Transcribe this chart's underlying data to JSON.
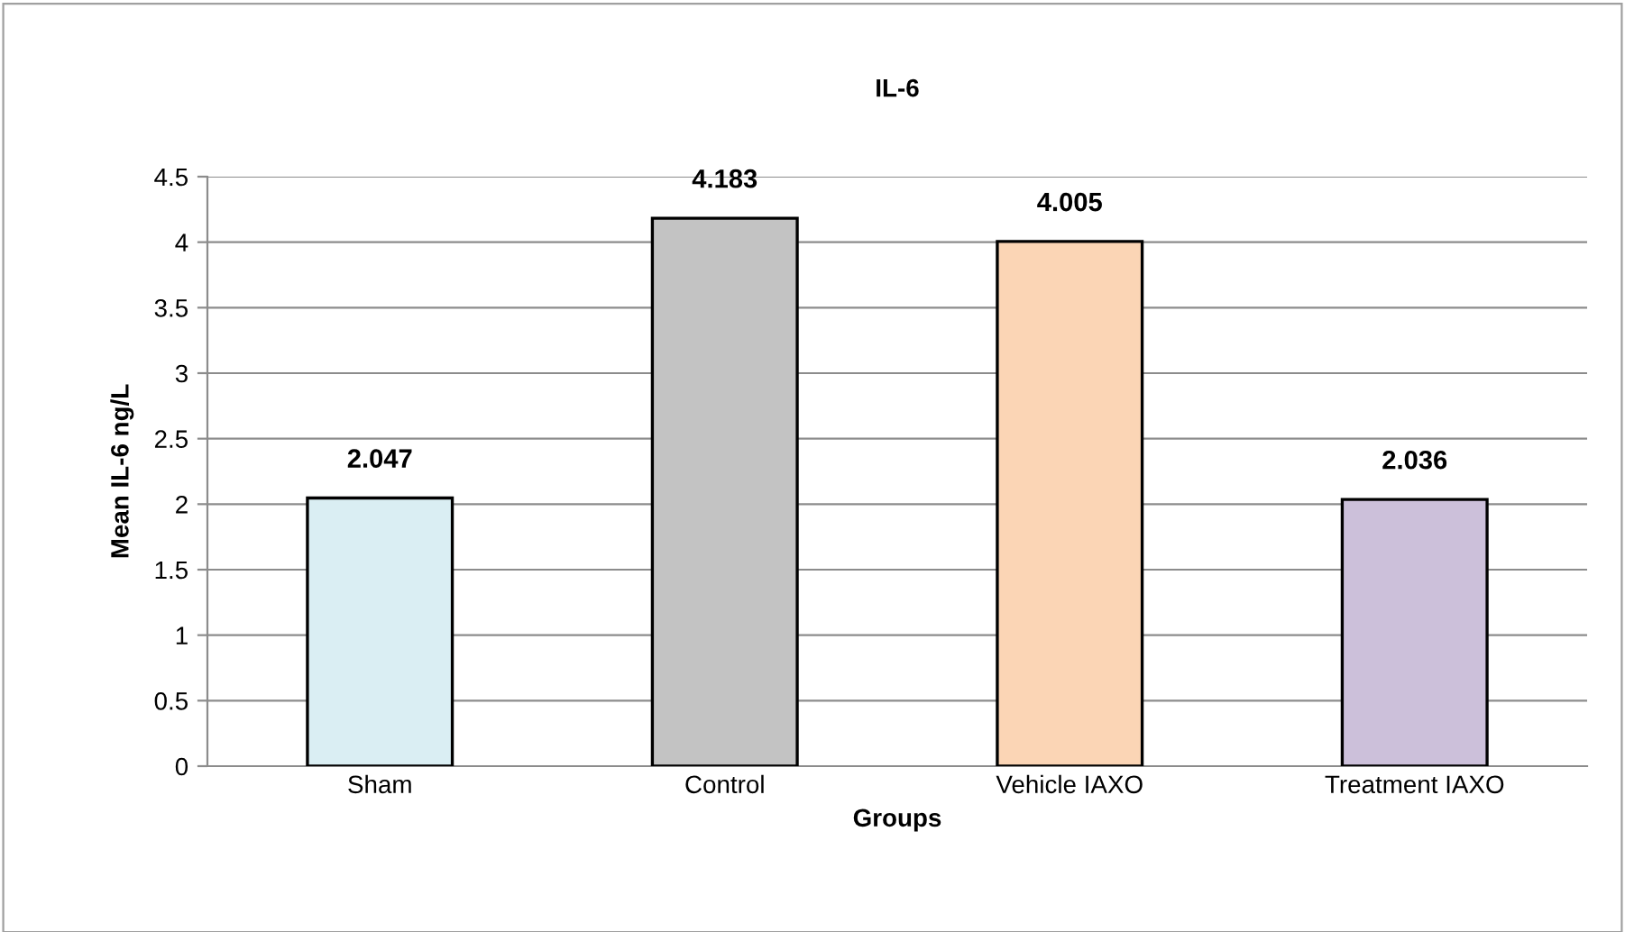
{
  "chart_data": {
    "type": "bar",
    "title": "IL-6",
    "xlabel": "Groups",
    "ylabel": "Mean IL-6 ng/L",
    "categories": [
      "Sham",
      "Control",
      "Vehicle IAXO",
      "Treatment IAXO"
    ],
    "values": [
      2.047,
      4.183,
      4.005,
      2.036
    ],
    "colors": [
      "#daeef3",
      "#c3c3c3",
      "#fbd5b5",
      "#ccc0da"
    ],
    "ylim": [
      0,
      4.5
    ],
    "yticks": [
      0,
      0.5,
      1,
      1.5,
      2,
      2.5,
      3,
      3.5,
      4,
      4.5
    ],
    "grid": "y",
    "data_labels": true,
    "legend": false
  }
}
